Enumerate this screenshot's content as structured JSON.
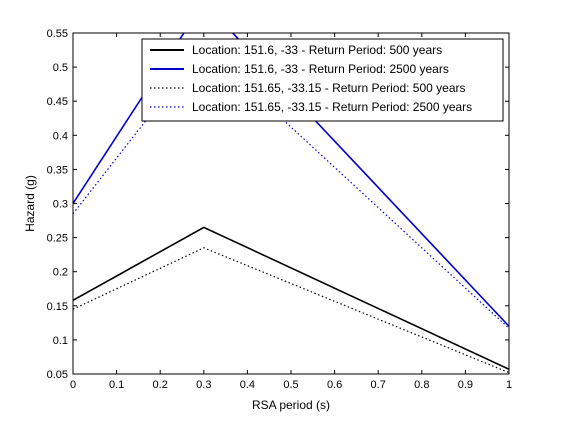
{
  "chart_data": {
    "type": "line",
    "title": "",
    "xlabel": "RSA period (s)",
    "ylabel": "Hazard (g)",
    "xlim": [
      0,
      1
    ],
    "ylim": [
      0.05,
      0.55
    ],
    "xticks": [
      0,
      0.1,
      0.2,
      0.3,
      0.4,
      0.5,
      0.6,
      0.7,
      0.8,
      0.9,
      1
    ],
    "yticks": [
      0.05,
      0.1,
      0.15,
      0.2,
      0.25,
      0.3,
      0.35,
      0.4,
      0.45,
      0.5,
      0.55
    ],
    "xtick_labels": [
      "0",
      "0.1",
      "0.2",
      "0.3",
      "0.4",
      "0.5",
      "0.6",
      "0.7",
      "0.8",
      "0.9",
      "1"
    ],
    "ytick_labels": [
      "0.05",
      "0.1",
      "0.15",
      "0.2",
      "0.25",
      "0.3",
      "0.35",
      "0.4",
      "0.45",
      "0.5",
      "0.55"
    ],
    "grid": false,
    "legend_position": "top-right",
    "series": [
      {
        "name": "Location: 151.6, -33 - Return Period: 500 years",
        "color": "#000000",
        "style": "solid",
        "x": [
          0,
          0.3,
          1
        ],
        "y": [
          0.158,
          0.265,
          0.057
        ]
      },
      {
        "name": "Location: 151.6, -33 - Return Period: 2500 years",
        "color": "#0000cc",
        "style": "solid",
        "x": [
          0,
          0.3,
          1
        ],
        "y": [
          0.3,
          0.595,
          0.12
        ]
      },
      {
        "name": "Location: 151.65, -33.15 - Return Period: 500 years",
        "color": "#000000",
        "style": "dotted",
        "x": [
          0,
          0.3,
          1
        ],
        "y": [
          0.145,
          0.235,
          0.052
        ]
      },
      {
        "name": "Location: 151.65, -33.15 - Return Period: 2500 years",
        "color": "#0000cc",
        "style": "dotted",
        "x": [
          0,
          0.3,
          1
        ],
        "y": [
          0.285,
          0.53,
          0.117
        ]
      }
    ]
  }
}
